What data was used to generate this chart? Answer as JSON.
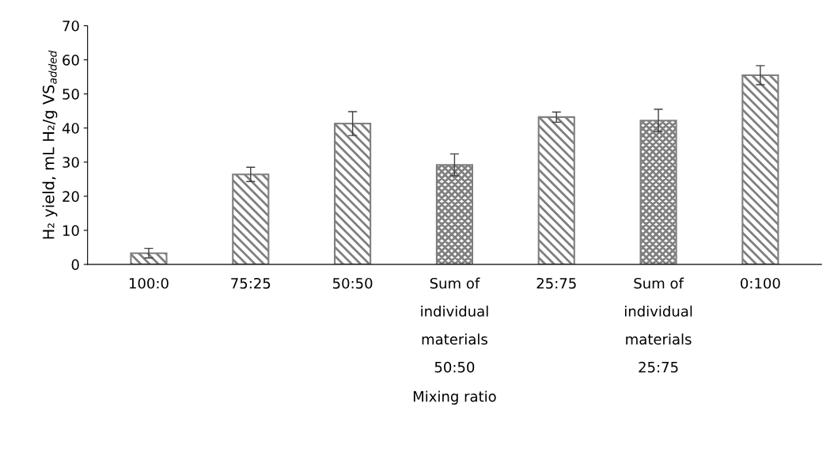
{
  "chart_data": {
    "type": "bar",
    "xlabel": "Mixing ratio",
    "ylabel": "H₂ yield, mL H₂/g VS$_{added}$",
    "categories": [
      "100:0",
      "75:25",
      "50:50",
      "Sum of\nindividual\nmaterials\n50:50",
      "25:75",
      "Sum of\nindividual\nmaterials\n25:75",
      "0:100"
    ],
    "series": [
      {
        "color": "#7f7f7f",
        "values": [
          3.3,
          26.4,
          41.3,
          null,
          43.2,
          null,
          55.5
        ],
        "errors": [
          1.4,
          2.1,
          3.5,
          null,
          1.5,
          null,
          2.8
        ]
      },
      {
        "color": "#7f7f7f",
        "values": [
          null,
          null,
          null,
          29.2,
          null,
          42.2,
          null
        ],
        "errors": [
          null,
          null,
          null,
          3.2,
          null,
          3.3,
          null
        ]
      }
    ],
    "ylim": [
      0,
      70
    ],
    "yticks": [
      0,
      10,
      20,
      30,
      40,
      50,
      60,
      70
    ],
    "grid": false,
    "legend": false
  }
}
